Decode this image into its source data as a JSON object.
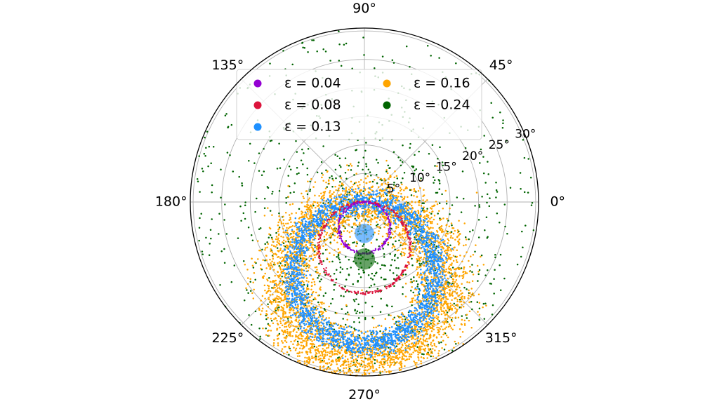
{
  "chart_data": {
    "type": "scatter",
    "projection": "polar",
    "title": "",
    "theta_direction": "counter-clockwise",
    "theta_zero": "east",
    "angle_ticks": [
      {
        "deg": 0,
        "label": "0°"
      },
      {
        "deg": 45,
        "label": "45°"
      },
      {
        "deg": 90,
        "label": "90°"
      },
      {
        "deg": 135,
        "label": "135°"
      },
      {
        "deg": 180,
        "label": "180°"
      },
      {
        "deg": 225,
        "label": "225°"
      },
      {
        "deg": 270,
        "label": "270°"
      },
      {
        "deg": 315,
        "label": "315°"
      }
    ],
    "radial_ticks": [
      {
        "value": 5,
        "label": "5°"
      },
      {
        "value": 10,
        "label": "10°"
      },
      {
        "value": 15,
        "label": "15°"
      },
      {
        "value": 20,
        "label": "20°"
      },
      {
        "value": 25,
        "label": "25°"
      },
      {
        "value": 30,
        "label": "30°"
      }
    ],
    "r_lim": [
      0,
      30.5
    ],
    "radial_label_angle_deg": 22.5,
    "grid": true,
    "legend": {
      "placement": "upper-center",
      "columns": 2,
      "framed": true
    },
    "series": [
      {
        "name": "ε = 0.04",
        "color": "#9400d3",
        "shape": "ring",
        "center_theta_deg": 270,
        "center_r": 4.5,
        "ring_radius": 4.5,
        "n_points": 260,
        "spread": 0.12
      },
      {
        "name": "ε = 0.08",
        "color": "#dc143c",
        "shape": "ring",
        "center_theta_deg": 270,
        "center_r": 8.0,
        "ring_radius": 8.0,
        "n_points": 340,
        "spread": 0.14
      },
      {
        "name": "ε = 0.13",
        "color": "#1e90ff",
        "shape": "ring",
        "center_theta_deg": 270,
        "center_r": 12.5,
        "ring_radius": 12.5,
        "n_points": 2400,
        "spread": 1.05,
        "blob": {
          "theta_deg": 270,
          "r": 5.5,
          "radius": 1.7
        }
      },
      {
        "name": "ε = 0.16",
        "color": "#ffa500",
        "shape": "ring",
        "center_theta_deg": 270,
        "center_r": 14.0,
        "ring_radius": 14.0,
        "n_points": 4200,
        "spread": 2.6
      },
      {
        "name": "ε = 0.24",
        "color": "#006400",
        "shape": "scatter",
        "center_theta_deg": 270,
        "center_r": 9.0,
        "n_points": 1100,
        "spread": 12.0,
        "blob": {
          "theta_deg": 270,
          "r": 10.0,
          "radius": 1.85
        }
      }
    ]
  }
}
